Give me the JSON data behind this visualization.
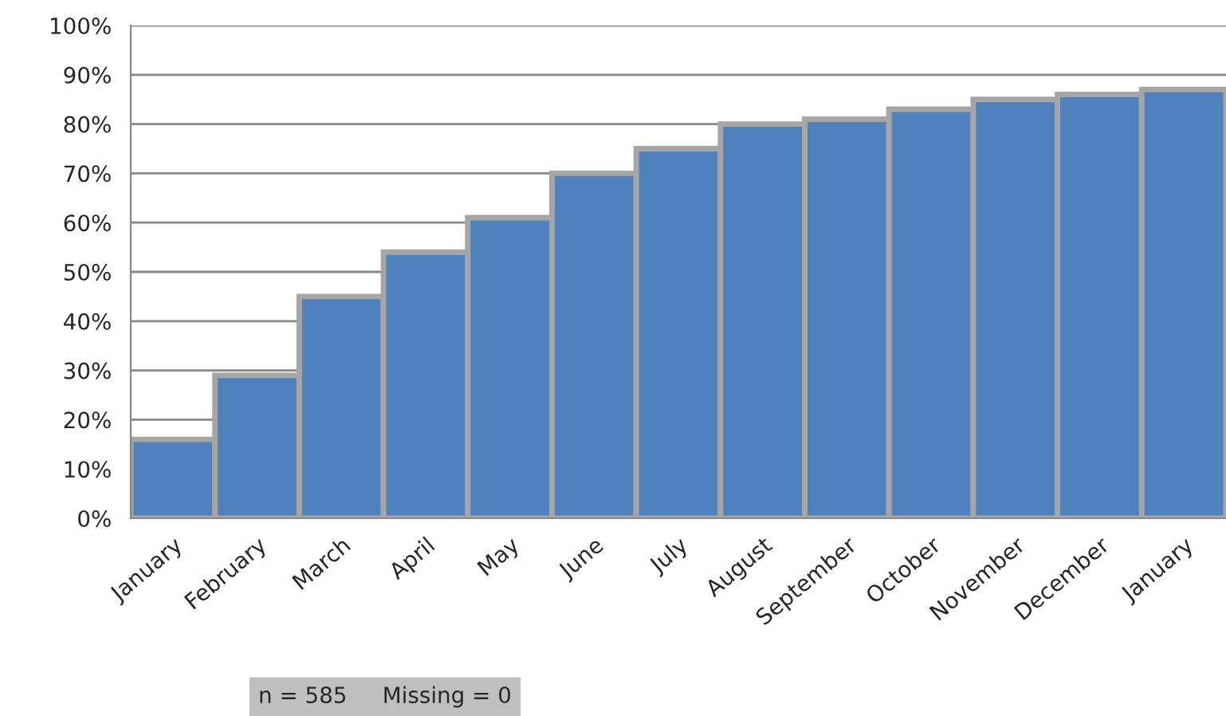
{
  "chart_data": {
    "type": "bar",
    "categories": [
      "January",
      "February",
      "March",
      "April",
      "May",
      "June",
      "July",
      "August",
      "September",
      "October",
      "November",
      "December",
      "January"
    ],
    "values": [
      16,
      29,
      45,
      54,
      61,
      70,
      75,
      80,
      81,
      83,
      85,
      86,
      87
    ],
    "color": "#4f81bd",
    "ylim": [
      0,
      100
    ],
    "yticks": [
      {
        "value": 0,
        "label": "0%"
      },
      {
        "value": 10,
        "label": "10%"
      },
      {
        "value": 20,
        "label": "20%"
      },
      {
        "value": 30,
        "label": "30%"
      },
      {
        "value": 40,
        "label": "40%"
      },
      {
        "value": 50,
        "label": "50%"
      },
      {
        "value": 60,
        "label": "60%"
      },
      {
        "value": 70,
        "label": "70%"
      },
      {
        "value": 80,
        "label": "80%"
      },
      {
        "value": 90,
        "label": "90%"
      },
      {
        "value": 100,
        "label": "100%"
      }
    ],
    "grid": "y",
    "annotations": [
      "n = 585     Missing = 0"
    ]
  }
}
